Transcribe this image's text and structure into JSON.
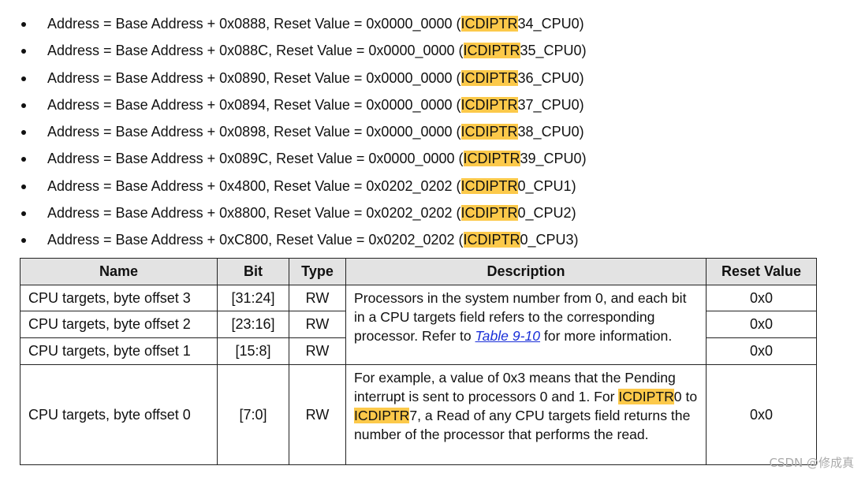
{
  "bullets": [
    {
      "before": "Address = Base Address + 0x0888, Reset Value = 0x0000_0000 (",
      "highlight": "ICDIPTR",
      "after": "34_CPU0)"
    },
    {
      "before": "Address = Base Address + 0x088C, Reset Value = 0x0000_0000 (",
      "highlight": "ICDIPTR",
      "after": "35_CPU0)"
    },
    {
      "before": "Address = Base Address + 0x0890, Reset Value = 0x0000_0000 (",
      "highlight": "ICDIPTR",
      "after": "36_CPU0)"
    },
    {
      "before": "Address = Base Address + 0x0894, Reset Value = 0x0000_0000 (",
      "highlight": "ICDIPTR",
      "after": "37_CPU0)"
    },
    {
      "before": "Address = Base Address + 0x0898, Reset Value = 0x0000_0000 (",
      "highlight": "ICDIPTR",
      "after": "38_CPU0)"
    },
    {
      "before": "Address = Base Address + 0x089C, Reset Value = 0x0000_0000 (",
      "highlight": "ICDIPTR",
      "after": "39_CPU0)"
    },
    {
      "before": "Address = Base Address + 0x4800, Reset Value = 0x0202_0202 (",
      "highlight": "ICDIPTR",
      "after": "0_CPU1)"
    },
    {
      "before": "Address = Base Address + 0x8800, Reset Value = 0x0202_0202 (",
      "highlight": "ICDIPTR",
      "after": "0_CPU2)"
    },
    {
      "before": "Address = Base Address + 0xC800, Reset Value = 0x0202_0202 (",
      "highlight": "ICDIPTR",
      "after": "0_CPU3)"
    }
  ],
  "table": {
    "headers": [
      "Name",
      "Bit",
      "Type",
      "Description",
      "Reset Value"
    ],
    "rows": [
      {
        "name": "CPU targets, byte offset 3",
        "bit": "[31:24]",
        "type": "RW",
        "reset": "0x0"
      },
      {
        "name": "CPU targets, byte offset 2",
        "bit": "[23:16]",
        "type": "RW",
        "reset": "0x0"
      },
      {
        "name": "CPU targets, byte offset 1",
        "bit": "[15:8]",
        "type": "RW",
        "reset": "0x0"
      },
      {
        "name": "CPU targets, byte offset 0",
        "bit": "[7:0]",
        "type": "RW",
        "reset": "0x0"
      }
    ],
    "descriptions": [
      {
        "text": "Processors in the system number from 0, and each bit in a CPU targets field refers to the corresponding processor. Refer to ",
        "link": "Table 9-10",
        "after": " for more information."
      },
      {
        "text": "For example, a value of 0x3 means that the Pending interrupt is sent to processors 0 and 1. For ",
        "highlight1": "ICDIPTR",
        "middle": "0 to ",
        "highlight2": "ICDIPTR",
        "after": "7, a Read of any CPU targets field returns the number of the processor that performs the read."
      }
    ]
  },
  "watermark": "CSDN @修成真"
}
